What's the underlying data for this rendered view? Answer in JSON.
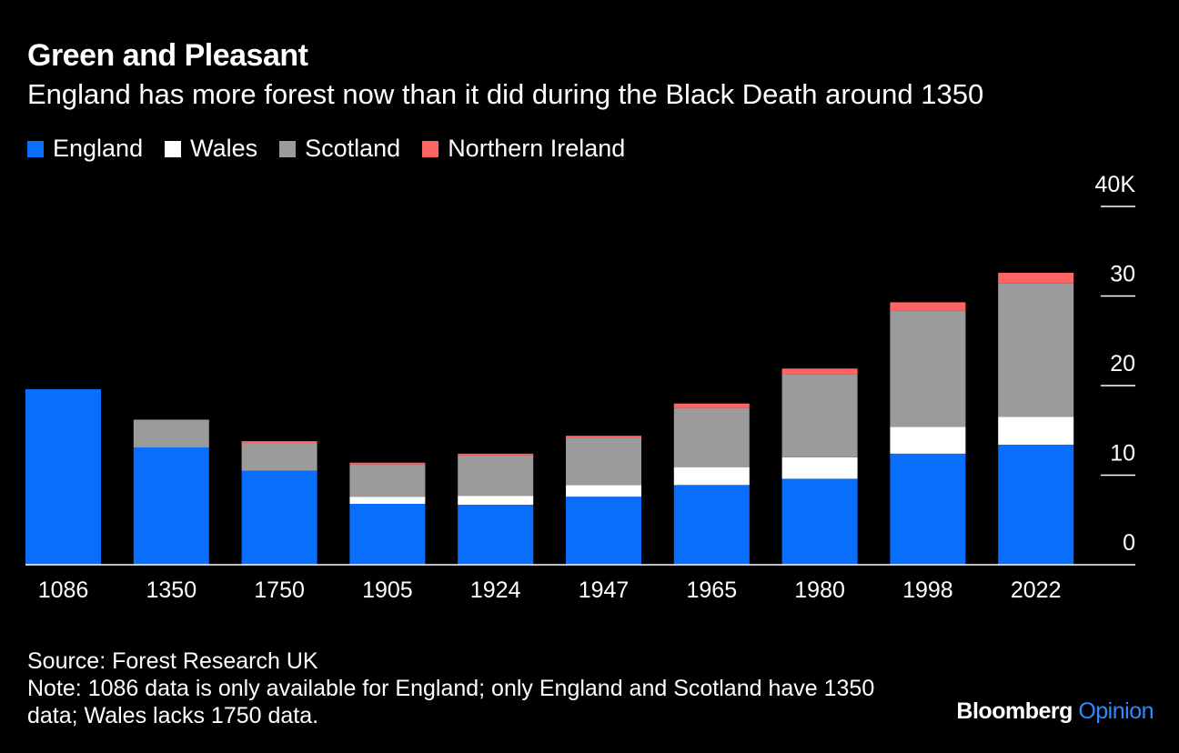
{
  "header": {
    "title": "Green and Pleasant",
    "subtitle": "England has more forest now than it did during the Black Death around 1350"
  },
  "colors": {
    "england": "#0a6efc",
    "wales": "#ffffff",
    "scotland": "#9b9b9b",
    "northern_ireland": "#ff6464",
    "background": "#000000",
    "brand_accent": "#2e8bff"
  },
  "chart_data": {
    "type": "bar",
    "stacked": true,
    "title": "Green and Pleasant",
    "subtitle": "England has more forest now than it did during the Black Death around 1350",
    "categories": [
      "1086",
      "1350",
      "1750",
      "1905",
      "1924",
      "1947",
      "1965",
      "1980",
      "1998",
      "2022"
    ],
    "series": [
      {
        "name": "England",
        "key": "england",
        "values": [
          19.6,
          13.1,
          10.5,
          6.8,
          6.7,
          7.6,
          8.9,
          9.6,
          12.4,
          13.4
        ]
      },
      {
        "name": "Wales",
        "key": "wales",
        "values": [
          0,
          0,
          0,
          0.8,
          1.0,
          1.3,
          2.0,
          2.4,
          3.0,
          3.1
        ]
      },
      {
        "name": "Scotland",
        "key": "scotland",
        "values": [
          0,
          3.1,
          3.1,
          3.6,
          4.5,
          5.3,
          6.6,
          9.3,
          13.0,
          14.9
        ]
      },
      {
        "name": "Northern Ireland",
        "key": "northern_ireland",
        "values": [
          0,
          0,
          0.2,
          0.2,
          0.2,
          0.2,
          0.5,
          0.6,
          0.9,
          1.2
        ]
      }
    ],
    "y_ticks": [
      "0",
      "10",
      "20",
      "30",
      "40K"
    ],
    "y_tick_values": [
      0,
      10,
      20,
      30,
      40
    ],
    "ylim": [
      0,
      40
    ],
    "axis_side": "right",
    "legend_position": "top-left"
  },
  "footer": {
    "source": "Source: Forest Research UK",
    "note_line1": "Note: 1086 data is only available for England; only England and Scotland have 1350",
    "note_line2": "data; Wales lacks 1750 data."
  },
  "brand": {
    "name": "Bloomberg",
    "product": "Opinion"
  }
}
